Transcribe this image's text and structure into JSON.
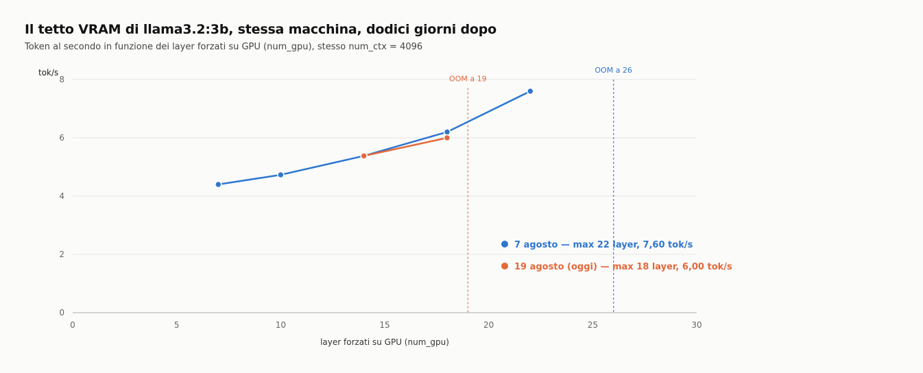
{
  "title": "Il tetto VRAM di llama3.2:3b, stessa macchina, dodici giorni dopo",
  "subtitle": "Token al secondo in funzione dei layer forzati su GPU (num_gpu), stesso num_ctx = 4096",
  "colors": {
    "blue": "#2f76cf",
    "orange": "#e3683a",
    "grid": "#e6e6e6",
    "axis": "#c8c8c8"
  },
  "chart_data": {
    "type": "line",
    "xlabel": "layer forzati su GPU (num_gpu)",
    "ylabel": "tok/s",
    "xlim": [
      0,
      30
    ],
    "ylim": [
      0,
      8
    ],
    "x_ticks": [
      "0",
      "5",
      "10",
      "15",
      "20",
      "25",
      "30"
    ],
    "y_ticks": [
      "0",
      "2",
      "4",
      "6",
      "8"
    ],
    "grid": true,
    "series": [
      {
        "name": "7 agosto — max 22 layer, 7,60 tok/s",
        "color": "#2f76cf",
        "x": [
          7,
          10,
          14,
          18,
          22
        ],
        "y": [
          4.4,
          4.73,
          5.38,
          6.2,
          7.6
        ]
      },
      {
        "name": "19 agosto (oggi) — max 18 layer, 6,00 tok/s",
        "color": "#e3683a",
        "x": [
          14,
          18
        ],
        "y": [
          5.38,
          6.0
        ]
      }
    ],
    "annotations": [
      {
        "label": "OOM a 19",
        "x": 19,
        "color": "#e3683a"
      },
      {
        "label": "OOM a 26",
        "x": 26,
        "color": "#2f76cf"
      }
    ],
    "legend_position": "inside-bottom-right"
  }
}
